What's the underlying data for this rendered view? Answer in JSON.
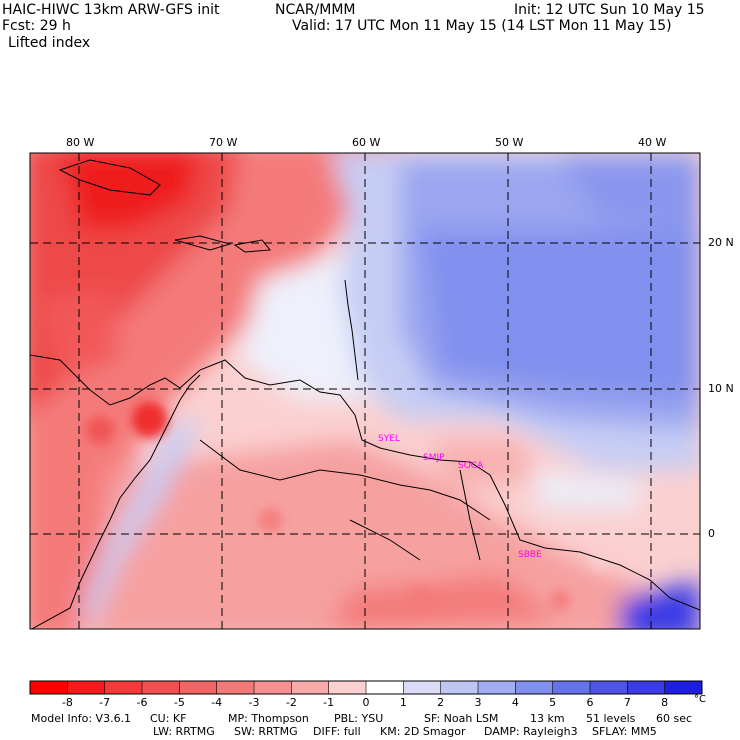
{
  "header": {
    "model": "HAIC-HIWC 13km ARW-GFS init",
    "org": "NCAR/MMM",
    "init": "Init: 12 UTC Sun 10 May 15",
    "fcst": "Fcst:   29 h",
    "valid": "Valid: 17 UTC Mon 11 May 15 (14 LST Mon 11 May 15)",
    "field": "Lifted index"
  },
  "map": {
    "lon_labels": [
      "80 W",
      "70 W",
      "60 W",
      "50 W",
      "40 W"
    ],
    "lat_labels": [
      "20 N",
      "10 N",
      "0"
    ],
    "stations": [
      "SYEL",
      "SMJP",
      "SOCA",
      "SBBE"
    ],
    "colors": {
      "strong_neg": "#ee1c1c",
      "neg": "#f47a7a",
      "weak_neg": "#fbd0d0",
      "neutral": "#f2f2fa",
      "weak_pos": "#c6cdf4",
      "pos": "#8190ee",
      "strong_pos": "#3a3ae6",
      "station": "#ff00ff"
    }
  },
  "colorbar": {
    "labels": [
      "-8",
      "-7",
      "-6",
      "-5",
      "-4",
      "-3",
      "-2",
      "-1",
      "0",
      "1",
      "2",
      "3",
      "4",
      "5",
      "6",
      "7",
      "8"
    ],
    "unit": "°C",
    "colors": [
      "#ff0000",
      "#f71a1a",
      "#f53a3a",
      "#f25050",
      "#f26565",
      "#f47a7a",
      "#f69090",
      "#f8aaaa",
      "#fbd0d0",
      "#ffffff",
      "#dcdcf8",
      "#bfc6f4",
      "#a2acf2",
      "#8190ee",
      "#6672ea",
      "#4e55e6",
      "#3a3ae6",
      "#1e1ee0"
    ]
  },
  "footer": {
    "line1": [
      "Model Info: V3.6.1",
      "CU: KF",
      "MP: Thompson",
      "PBL: YSU",
      "SF: Noah LSM",
      "13 km",
      "51 levels",
      "60 sec"
    ],
    "line2": [
      "LW: RRTMG",
      "SW: RRTMG",
      "DIFF: full",
      "KM: 2D Smagor",
      "DAMP: Rayleigh3",
      "SFLAY: MM5"
    ]
  }
}
